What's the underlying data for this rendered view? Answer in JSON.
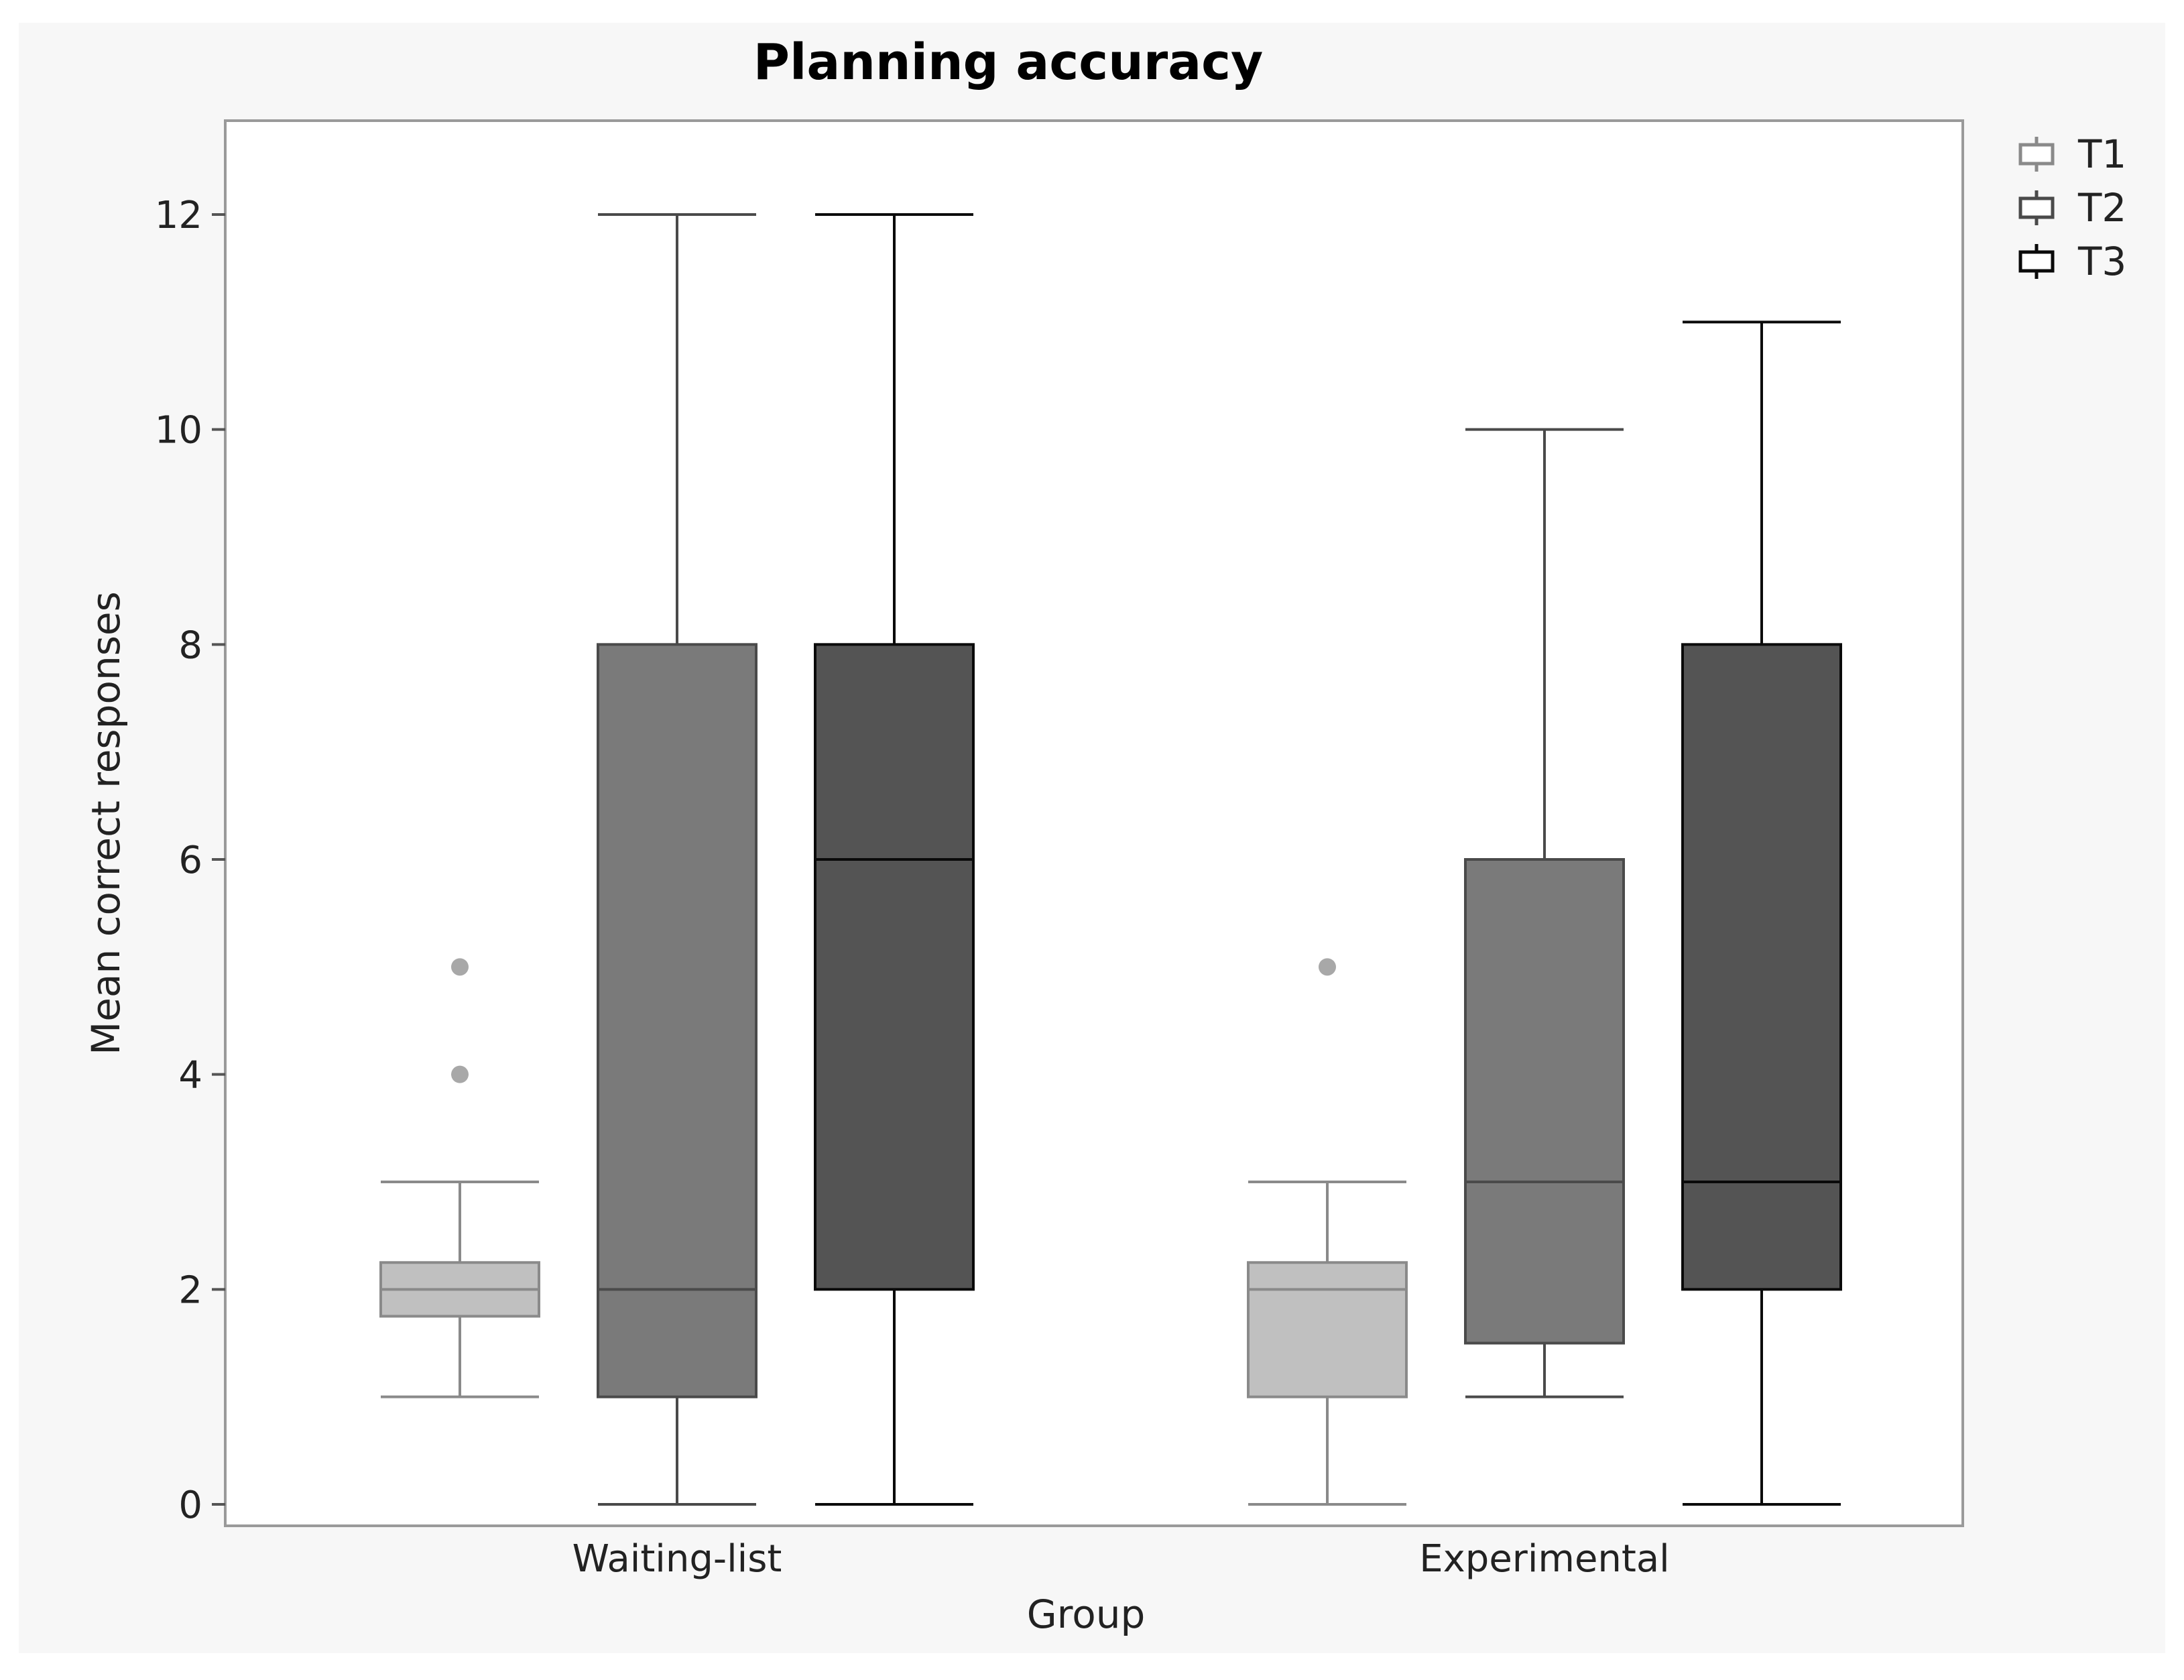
{
  "chart_data": {
    "type": "boxplot",
    "title": "Planning accuracy",
    "xlabel": "Group",
    "ylabel": "Mean correct responses",
    "ylim": [
      0,
      12.9
    ],
    "yticks": [
      0,
      2,
      4,
      6,
      8,
      10,
      12
    ],
    "grid": false,
    "legend_position": "top-right outside",
    "categories": [
      "Waiting-list",
      "Experimental"
    ],
    "series": [
      {
        "name": "T1",
        "fill": "#c0c0c0",
        "stroke": "#8a8a8a",
        "boxes": [
          {
            "whisker_low": 1,
            "q1": 1.75,
            "median": 2,
            "q3": 2.25,
            "whisker_high": 3,
            "outliers": [
              4,
              5
            ]
          },
          {
            "whisker_low": 0,
            "q1": 1,
            "median": 2,
            "q3": 2.25,
            "whisker_high": 3,
            "outliers": [
              5
            ]
          }
        ]
      },
      {
        "name": "T2",
        "fill": "#7a7a7a",
        "stroke": "#4a4a4a",
        "boxes": [
          {
            "whisker_low": 0,
            "q1": 1,
            "median": 2,
            "q3": 8,
            "whisker_high": 12,
            "outliers": []
          },
          {
            "whisker_low": 1,
            "q1": 1.5,
            "median": 3,
            "q3": 6,
            "whisker_high": 10,
            "outliers": []
          }
        ]
      },
      {
        "name": "T3",
        "fill": "#545454",
        "stroke": "#0a0a0a",
        "boxes": [
          {
            "whisker_low": 0,
            "q1": 2,
            "median": 6,
            "q3": 8,
            "whisker_high": 12,
            "outliers": []
          },
          {
            "whisker_low": 0,
            "q1": 2,
            "median": 3,
            "q3": 8,
            "whisker_high": 11,
            "outliers": []
          }
        ]
      }
    ]
  }
}
